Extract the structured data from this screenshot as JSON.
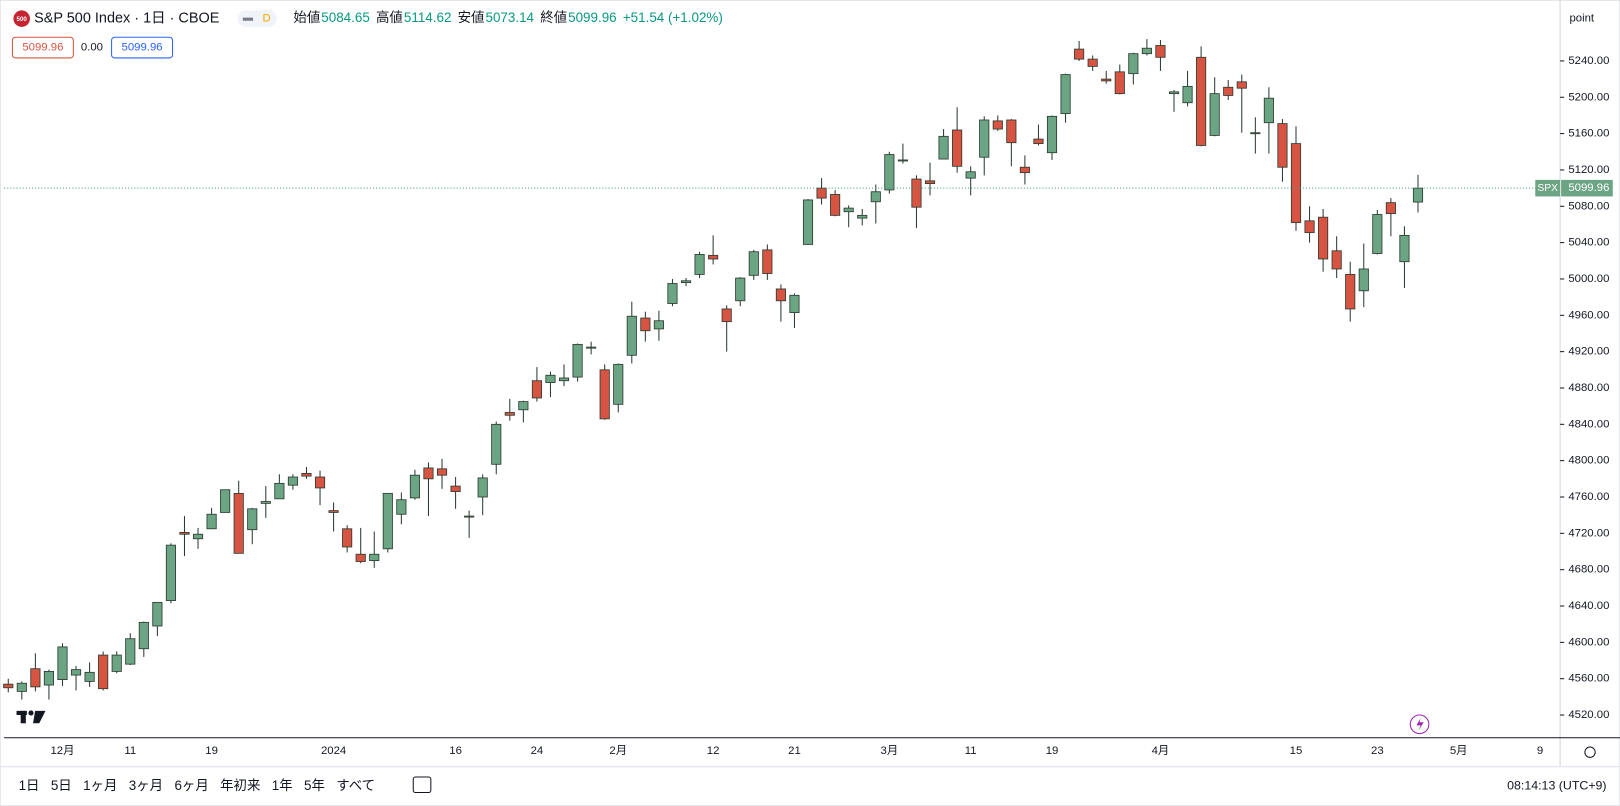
{
  "chart_data": {
    "type": "candlestick",
    "title": "S&P 500 Index · 1日 · CBOE",
    "logo": "500",
    "interval_badge": "D",
    "legend_labels": {
      "open": "始値",
      "high": "高値",
      "low": "安値",
      "close": "終値"
    },
    "change": "+51.54 (+1.02%)",
    "spread": "0.00",
    "symbol_tag": "SPX",
    "scale_unit": "point",
    "up_color": "#6ba583",
    "down_color": "#d75442",
    "border_color": "#2b3a30",
    "last_line_color": "#3a9a7a",
    "categories": [
      null,
      null,
      null,
      null,
      "12月",
      null,
      null,
      null,
      null,
      "11",
      null,
      null,
      null,
      null,
      null,
      "19",
      null,
      null,
      null,
      null,
      null,
      null,
      null,
      null,
      "2024",
      null,
      null,
      null,
      null,
      null,
      null,
      null,
      null,
      "16",
      null,
      null,
      null,
      null,
      null,
      "24",
      null,
      null,
      null,
      null,
      null,
      "2月",
      null,
      null,
      null,
      null,
      null,
      null,
      "12",
      null,
      null,
      null,
      null,
      null,
      "21",
      null,
      null,
      null,
      null,
      null,
      null,
      "3月",
      null,
      null,
      null,
      null,
      null,
      "11",
      null,
      null,
      null,
      null,
      null,
      "19",
      null,
      null,
      null,
      null,
      null,
      null,
      null,
      "4月",
      null,
      null,
      null,
      null,
      null,
      null,
      null,
      null,
      null,
      "15",
      null,
      null,
      null,
      null,
      null,
      "23",
      null,
      null,
      null,
      null,
      null,
      "5月",
      null,
      null,
      null,
      null,
      null,
      "9"
    ],
    "open": [
      4554,
      4546,
      4571,
      4553,
      4559,
      4564,
      4557,
      4586,
      4568,
      4576,
      4593,
      4618,
      4646,
      4721,
      4714,
      4725,
      4743,
      4764,
      4724,
      4753,
      4758,
      4773,
      4786,
      4782,
      4745,
      4725,
      4697,
      4690,
      4703,
      4741,
      4759,
      4792,
      4791,
      4772,
      4739,
      4760,
      4796,
      4853,
      4856,
      4888,
      4886,
      4888,
      4892,
      4925,
      4900,
      4862,
      4916,
      4957,
      4945,
      4973,
      4996,
      5005,
      5026,
      4967,
      4976,
      5004,
      5032,
      4989,
      4963,
      5038,
      5100,
      5093,
      5074,
      5067,
      5085,
      5098,
      5130,
      5110,
      5108,
      5132,
      5164,
      5111,
      5134,
      5174,
      5175,
      5123,
      5154,
      5139,
      5182,
      5253,
      5242,
      5220,
      5228,
      5226,
      5248,
      5257,
      5204,
      5194,
      5244,
      5158,
      5211,
      5217,
      5160,
      5172,
      5171,
      5149,
      5064,
      5068,
      5031,
      5005,
      4987,
      5028,
      5084,
      5019,
      5084.65,
      null,
      null,
      null,
      null,
      null,
      null,
      null,
      null,
      null
    ],
    "high": [
      4560,
      4557,
      4588,
      4570,
      4599,
      4574,
      4578,
      4590,
      4590,
      4610,
      4623,
      4644,
      4709,
      4739,
      4726,
      4748,
      4768,
      4778,
      4748,
      4772,
      4785,
      4785,
      4793,
      4789,
      4754,
      4729,
      4726,
      4722,
      4764,
      4765,
      4790,
      4798,
      4802,
      4782,
      4745,
      4785,
      4843,
      4868,
      4866,
      4903,
      4898,
      4906,
      4929,
      4931,
      4906,
      4907,
      4975,
      4964,
      4965,
      5000,
      5001,
      5030,
      5048,
      4971,
      5002,
      5032,
      5038,
      4994,
      4984,
      5088,
      5111,
      5098,
      5081,
      5077,
      5104,
      5140,
      5149,
      5114,
      5128,
      5165,
      5189,
      5124,
      5179,
      5180,
      5176,
      5136,
      5170,
      5180,
      5226,
      5262,
      5246,
      5229,
      5236,
      5249,
      5264,
      5263,
      5208,
      5229,
      5256,
      5222,
      5219,
      5225,
      5178,
      5211,
      5176,
      5168,
      5080,
      5077,
      5047,
      5019,
      5039,
      5076,
      5089,
      5058,
      5114.62,
      null,
      null,
      null,
      null,
      null,
      null,
      null,
      null,
      null
    ],
    "low": [
      4545,
      4537,
      4546,
      4537,
      4552,
      4547,
      4551,
      4547,
      4566,
      4575,
      4584,
      4607,
      4643,
      4695,
      4703,
      4725,
      4743,
      4698,
      4708,
      4737,
      4758,
      4768,
      4780,
      4751,
      4722,
      4699,
      4687,
      4682,
      4699,
      4730,
      4757,
      4739,
      4769,
      4747,
      4715,
      4740,
      4785,
      4844,
      4842,
      4865,
      4870,
      4882,
      4887,
      4917,
      4845,
      4853,
      4907,
      4931,
      4932,
      4970,
      4992,
      5001,
      5016,
      4920,
      4970,
      4999,
      4999,
      4953,
      4946,
      5038,
      5082,
      5069,
      5057,
      5059,
      5061,
      5094,
      5127,
      5056,
      5092,
      5132,
      5117,
      5092,
      5114,
      5163,
      5124,
      5104,
      5147,
      5131,
      5172,
      5240,
      5229,
      5215,
      5203,
      5214,
      5246,
      5229,
      5184,
      5190,
      5146,
      5157,
      5197,
      5161,
      5138,
      5138,
      5107,
      5053,
      5040,
      5008,
      5001,
      4953,
      4969,
      5027,
      5047,
      4990,
      5073.14,
      null,
      null,
      null,
      null,
      null,
      null,
      null,
      null,
      null
    ],
    "close": [
      4550,
      4555,
      4551,
      4568,
      4595,
      4570,
      4567,
      4549,
      4586,
      4604,
      4622,
      4644,
      4707,
      4719,
      4719,
      4741,
      4768,
      4698,
      4747,
      4755,
      4775,
      4782,
      4783,
      4770,
      4743,
      4705,
      4689,
      4697,
      4764,
      4757,
      4784,
      4780,
      4784,
      4766,
      4739,
      4781,
      4840,
      4850,
      4865,
      4869,
      4894,
      4891,
      4928,
      4925,
      4846,
      4906,
      4959,
      4943,
      4954,
      4995,
      4998,
      5027,
      5022,
      4953,
      5001,
      5030,
      5006,
      4976,
      4982,
      5087,
      5089,
      5070,
      5078,
      5070,
      5096,
      5137,
      5131,
      5079,
      5105,
      5157,
      5124,
      5118,
      5175,
      5165,
      5150,
      5117,
      5149,
      5179,
      5225,
      5242,
      5234,
      5218,
      5204,
      5248,
      5254,
      5244,
      5206,
      5212,
      5147,
      5204,
      5202,
      5210,
      5161,
      5199,
      5123,
      5062,
      5051,
      5022,
      5011,
      4967,
      5011,
      5071,
      5072,
      5048,
      5099.96,
      null,
      null,
      null,
      null,
      null,
      null,
      null,
      null,
      null
    ],
    "ylim": [
      4495,
      5307
    ],
    "yticks": [
      {
        "value": 4520,
        "label": "4520.00"
      },
      {
        "value": 4560,
        "label": "4560.00"
      },
      {
        "value": 4600,
        "label": "4600.00"
      },
      {
        "value": 4640,
        "label": "4640.00"
      },
      {
        "value": 4680,
        "label": "4680.00"
      },
      {
        "value": 4720,
        "label": "4720.00"
      },
      {
        "value": 4760,
        "label": "4760.00"
      },
      {
        "value": 4800,
        "label": "4800.00"
      },
      {
        "value": 4840,
        "label": "4840.00"
      },
      {
        "value": 4880,
        "label": "4880.00"
      },
      {
        "value": 4920,
        "label": "4920.00"
      },
      {
        "value": 4960,
        "label": "4960.00"
      },
      {
        "value": 5000,
        "label": "5000.00"
      },
      {
        "value": 5040,
        "label": "5040.00"
      },
      {
        "value": 5080,
        "label": "5080.00"
      },
      {
        "value": 5120,
        "label": "5120.00"
      },
      {
        "value": 5160,
        "label": "5160.00"
      },
      {
        "value": 5200,
        "label": "5200.00"
      },
      {
        "value": 5240,
        "label": "5240.00"
      }
    ],
    "grid": false
  },
  "toolbar": {
    "ranges": [
      "1日",
      "5日",
      "1ヶ月",
      "3ヶ月",
      "6ヶ月",
      "年初来",
      "1年",
      "5年",
      "すべて"
    ],
    "clock": "08:14:13 (UTC+9)"
  }
}
